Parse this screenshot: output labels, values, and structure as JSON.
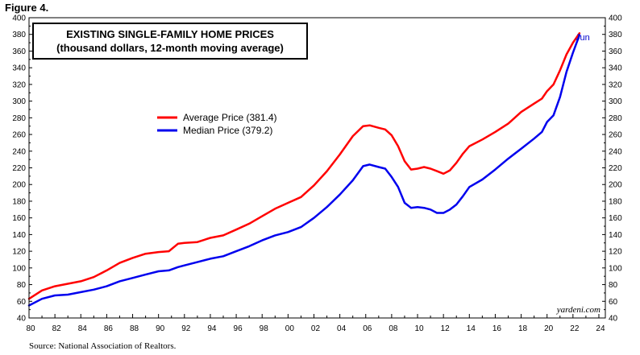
{
  "figure_label": "Figure 4.",
  "source": "Source: National Association of Realtors.",
  "watermark": "yardeni.com",
  "chart_data": {
    "type": "line",
    "title_line1": "EXISTING SINGLE-FAMILY HOME PRICES",
    "title_line2": "(thousand dollars, 12-month moving average)",
    "end_label": "Jun",
    "ylim": [
      40,
      400
    ],
    "y_ticks": [
      40,
      60,
      80,
      100,
      120,
      140,
      160,
      180,
      200,
      220,
      240,
      260,
      280,
      300,
      320,
      340,
      360,
      380,
      400
    ],
    "xlim": [
      1980,
      2024.5
    ],
    "x_ticks": [
      1980,
      1982,
      1984,
      1986,
      1988,
      1990,
      1992,
      1994,
      1996,
      1998,
      2000,
      2002,
      2004,
      2006,
      2008,
      2010,
      2012,
      2014,
      2016,
      2018,
      2020,
      2022,
      2024
    ],
    "x_tick_labels": [
      "80",
      "82",
      "84",
      "86",
      "88",
      "90",
      "92",
      "94",
      "96",
      "98",
      "00",
      "02",
      "04",
      "06",
      "08",
      "10",
      "12",
      "14",
      "16",
      "18",
      "20",
      "22",
      "24"
    ],
    "series": [
      {
        "name": "Average Price (381.4)",
        "color": "#ff0000",
        "x": [
          1980,
          1981,
          1982,
          1983,
          1984,
          1985,
          1986,
          1987,
          1988,
          1989,
          1990,
          1990.8,
          1991.5,
          1992,
          1993,
          1994,
          1995,
          1996,
          1997,
          1998,
          1999,
          2000,
          2001,
          2002,
          2003,
          2004,
          2005,
          2005.8,
          2006.3,
          2007,
          2007.5,
          2008,
          2008.5,
          2009,
          2009.5,
          2010,
          2010.5,
          2011,
          2011.5,
          2012,
          2012.5,
          2013,
          2013.5,
          2014,
          2015,
          2016,
          2017,
          2018,
          2019,
          2019.6,
          2020,
          2020.5,
          2021,
          2021.5,
          2022,
          2022.5
        ],
        "values": [
          63,
          73,
          78,
          81,
          84,
          89,
          97,
          106,
          112,
          117,
          119,
          120,
          129,
          130,
          131,
          136,
          139,
          146,
          153,
          162,
          171,
          178,
          185,
          199,
          216,
          236,
          258,
          270,
          271,
          268,
          266,
          259,
          246,
          228,
          218,
          219,
          221,
          219,
          216,
          213,
          217,
          226,
          237,
          246,
          254,
          263,
          273,
          287,
          297,
          303,
          312,
          320,
          337,
          356,
          370,
          381.4
        ]
      },
      {
        "name": "Median Price (379.2)",
        "color": "#0000ee",
        "x": [
          1980,
          1981,
          1982,
          1983,
          1984,
          1985,
          1986,
          1987,
          1988,
          1989,
          1990,
          1990.8,
          1991.5,
          1992,
          1993,
          1994,
          1995,
          1996,
          1997,
          1998,
          1999,
          2000,
          2001,
          2002,
          2003,
          2004,
          2005,
          2005.8,
          2006.3,
          2007,
          2007.5,
          2008,
          2008.5,
          2009,
          2009.5,
          2010,
          2010.5,
          2011,
          2011.5,
          2012,
          2012.5,
          2013,
          2013.5,
          2014,
          2015,
          2016,
          2017,
          2018,
          2019,
          2019.6,
          2020,
          2020.5,
          2021,
          2021.5,
          2022,
          2022.5
        ],
        "values": [
          55,
          63,
          67,
          68,
          71,
          74,
          78,
          84,
          88,
          92,
          96,
          97,
          101,
          103,
          107,
          111,
          114,
          120,
          126,
          133,
          139,
          143,
          149,
          160,
          173,
          188,
          205,
          222,
          224,
          221,
          219,
          209,
          197,
          178,
          172,
          173,
          172,
          170,
          166,
          166,
          170,
          176,
          186,
          197,
          206,
          218,
          231,
          243,
          255,
          263,
          275,
          283,
          305,
          335,
          358,
          379.2
        ]
      }
    ]
  }
}
